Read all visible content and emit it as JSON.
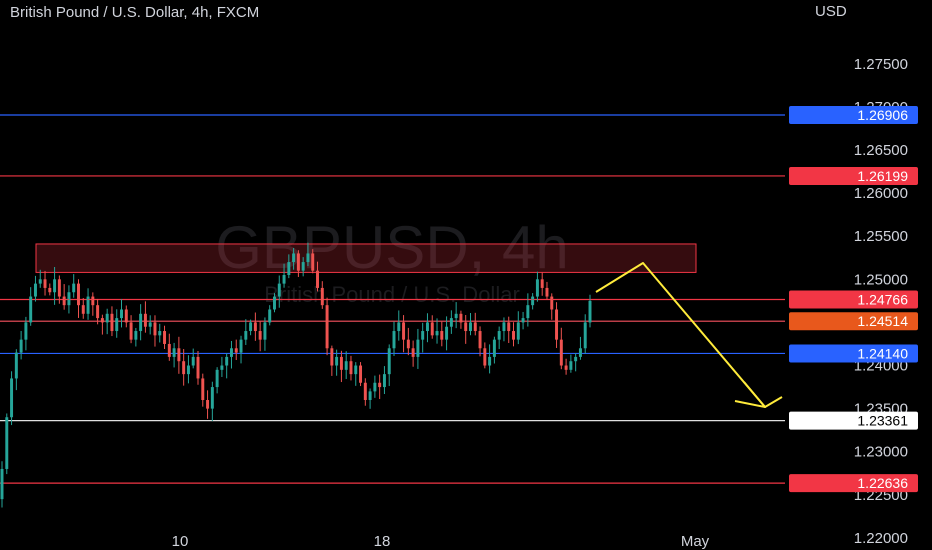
{
  "header": {
    "title": "British Pound / U.S. Dollar, 4h, FXCM"
  },
  "watermark": {
    "symbol": "GBPUSD, 4h",
    "description": "British Pound / U.S. Dollar"
  },
  "chart_data": {
    "type": "candlestick",
    "currency": "USD",
    "ylim": [
      1.2186,
      1.2824
    ],
    "y_ticks": [
      "1.27500",
      "1.27000",
      "1.26500",
      "1.26000",
      "1.25500",
      "1.25000",
      "1.24000",
      "1.23500",
      "1.23000",
      "1.22500",
      "1.22000"
    ],
    "x_ticks": [
      "10",
      "18",
      "May"
    ],
    "price_levels": [
      {
        "value": "1.26906",
        "color": "#2962ff",
        "text_color": "#ffffff"
      },
      {
        "value": "1.26199",
        "color": "#f23645",
        "text_color": "#ffffff"
      },
      {
        "value": "1.24766",
        "color": "#f23645",
        "text_color": "#ffffff"
      },
      {
        "value": "1.24514",
        "color": "#f7525f",
        "badge": "#e8581c",
        "text_color": "#ffffff"
      },
      {
        "value": "1.24140",
        "color": "#2962ff",
        "text_color": "#ffffff"
      },
      {
        "value": "1.23361",
        "color": "#e0e0e0",
        "badge": "#ffffff",
        "text_color": "#000000"
      },
      {
        "value": "1.22636",
        "color": "#f23645",
        "text_color": "#ffffff"
      }
    ],
    "zone": {
      "low": 1.2508,
      "high": 1.2541,
      "color": "#f23645"
    },
    "projection_color": "#ffeb3b",
    "up_color": "#26a69a",
    "down_color": "#ef5350",
    "closes": [
      1.228,
      1.234,
      1.2385,
      1.2415,
      1.243,
      1.245,
      1.248,
      1.2495,
      1.25,
      1.249,
      1.2485,
      1.25,
      1.248,
      1.247,
      1.2485,
      1.2495,
      1.247,
      1.246,
      1.248,
      1.247,
      1.2455,
      1.245,
      1.246,
      1.244,
      1.2455,
      1.2465,
      1.245,
      1.243,
      1.244,
      1.246,
      1.2445,
      1.245,
      1.2435,
      1.244,
      1.2425,
      1.241,
      1.242,
      1.2405,
      1.239,
      1.24,
      1.241,
      1.2385,
      1.236,
      1.235,
      1.2375,
      1.2395,
      1.24,
      1.241,
      1.242,
      1.2415,
      1.243,
      1.244,
      1.245,
      1.244,
      1.243,
      1.245,
      1.2465,
      1.248,
      1.2495,
      1.2505,
      1.252,
      1.253,
      1.251,
      1.252,
      1.253,
      1.251,
      1.249,
      1.247,
      1.242,
      1.24,
      1.241,
      1.2395,
      1.2405,
      1.239,
      1.24,
      1.238,
      1.236,
      1.237,
      1.238,
      1.2375,
      1.239,
      1.242,
      1.244,
      1.245,
      1.243,
      1.242,
      1.241,
      1.243,
      1.244,
      1.245,
      1.2435,
      1.244,
      1.243,
      1.2445,
      1.2455,
      1.246,
      1.245,
      1.244,
      1.245,
      1.244,
      1.242,
      1.24,
      1.241,
      1.243,
      1.244,
      1.245,
      1.244,
      1.243,
      1.245,
      1.2455,
      1.247,
      1.248,
      1.25,
      1.249,
      1.248,
      1.2465,
      1.243,
      1.24,
      1.2395,
      1.2405,
      1.241,
      1.242,
      1.245,
      1.2475
    ]
  }
}
